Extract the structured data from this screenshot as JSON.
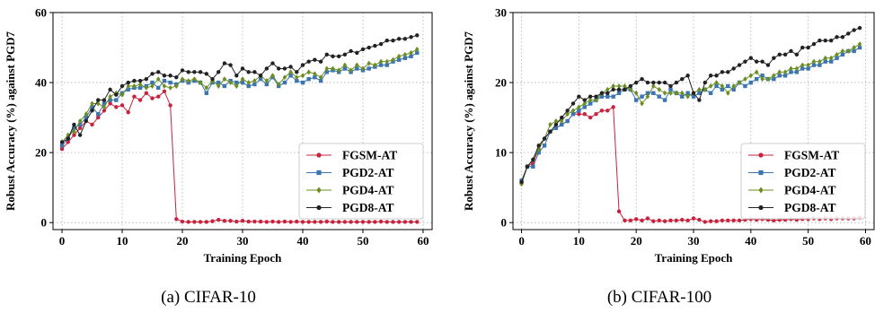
{
  "chart_data": [
    {
      "type": "line",
      "caption": "(a) CIFAR-10",
      "xlabel": "Training Epoch",
      "ylabel": "Robust Accuracy (%) against PGD7",
      "xlim": [
        -1.5,
        61.5
      ],
      "ylim": [
        -2,
        60
      ],
      "xticks": [
        0,
        10,
        20,
        30,
        40,
        50,
        60
      ],
      "yticks": [
        0,
        20,
        40,
        60
      ],
      "grid": true,
      "legend_position": "lower-right",
      "series": [
        {
          "name": "FGSM-AT",
          "color": "#c8223e",
          "marker": "circle",
          "values": [
            21,
            23,
            25,
            27,
            29,
            28,
            30,
            32,
            34,
            33,
            33.5,
            31.5,
            36,
            35,
            37,
            35.5,
            36,
            37.5,
            33.5,
            1,
            0.3,
            0.2,
            0.2,
            0.2,
            0.2,
            0.4,
            0.8,
            0.5,
            0.5,
            0.3,
            0.5,
            0.3,
            0.3,
            0.3,
            0.2,
            0.3,
            0.2,
            0.3,
            0.2,
            0.3,
            0.2,
            0.2,
            0.2,
            0.2,
            0.3,
            0.2,
            0.2,
            0.2,
            0.2,
            0.2,
            0.2,
            0.2,
            0.2,
            0.3,
            0.2,
            0.2,
            0.2,
            0.2,
            0.2,
            0.2
          ]
        },
        {
          "name": "PGD2-AT",
          "color": "#3b75af",
          "marker": "square",
          "values": [
            22,
            24,
            27,
            28,
            30,
            33,
            31,
            34,
            35,
            35,
            37,
            38,
            38.5,
            38.5,
            39,
            40,
            38.5,
            40.5,
            40,
            39.5,
            40.5,
            40,
            40.5,
            40,
            37,
            40,
            40,
            39,
            40.5,
            40,
            40,
            39,
            39.5,
            41,
            39.5,
            41.5,
            39,
            40,
            42,
            40.5,
            40,
            41,
            41.5,
            40.5,
            43,
            43.5,
            43,
            44,
            43,
            44,
            43.5,
            44,
            44.5,
            45,
            45,
            46,
            46.5,
            47,
            47.5,
            48.5
          ]
        },
        {
          "name": "PGD4-AT",
          "color": "#6b8e23",
          "marker": "diamond",
          "values": [
            23,
            25,
            26,
            29,
            31,
            34,
            34,
            33,
            36,
            37,
            36.5,
            39,
            39,
            39.5,
            38.5,
            39,
            41,
            39,
            38.5,
            39,
            41,
            40.5,
            41,
            40,
            38.5,
            40.5,
            39,
            41,
            40,
            39,
            41,
            40,
            40.5,
            42,
            40.5,
            42,
            39.5,
            41.5,
            43,
            41.5,
            42,
            43,
            42.5,
            41.5,
            44,
            44,
            43.5,
            45,
            43.5,
            45,
            44,
            45.5,
            45,
            46,
            46,
            46.5,
            47.5,
            48,
            48.5,
            49.5
          ]
        },
        {
          "name": "PGD8-AT",
          "color": "#222222",
          "marker": "circle",
          "values": [
            23,
            24,
            28,
            25,
            29,
            32,
            35,
            35,
            38,
            36.5,
            39,
            40,
            40.5,
            40.5,
            41,
            42.5,
            43,
            42,
            42,
            41.5,
            43.5,
            43,
            43,
            43,
            42.5,
            41,
            43,
            45.5,
            45,
            42,
            44,
            43,
            43,
            42,
            44,
            45.5,
            44,
            44,
            44.5,
            43,
            45,
            46,
            46.5,
            46,
            48,
            47.5,
            47.5,
            48,
            49,
            48.5,
            49.5,
            50,
            50.5,
            51,
            52,
            52,
            52.5,
            52.5,
            53,
            53.5
          ]
        }
      ]
    },
    {
      "type": "line",
      "caption": "(b) CIFAR-100",
      "xlabel": "Training Epoch",
      "ylabel": "Robust Accuracy (%) against PGD7",
      "xlim": [
        -1.5,
        61.5
      ],
      "ylim": [
        -1,
        30
      ],
      "xticks": [
        0,
        10,
        20,
        30,
        40,
        50,
        60
      ],
      "yticks": [
        0,
        10,
        20,
        30
      ],
      "grid": true,
      "legend_position": "lower-right",
      "series": [
        {
          "name": "FGSM-AT",
          "color": "#c8223e",
          "marker": "circle",
          "values": [
            5.6,
            8,
            8.5,
            10.5,
            12,
            13,
            13.5,
            14,
            14.5,
            15.5,
            15.5,
            15.5,
            15,
            15.5,
            16,
            16,
            16.5,
            1.6,
            0.3,
            0.3,
            0.5,
            0.3,
            0.6,
            0.2,
            0.3,
            0.2,
            0.3,
            0.3,
            0.4,
            0.3,
            0.6,
            0.4,
            0.1,
            0.2,
            0.2,
            0.3,
            0.3,
            0.3,
            0.3,
            0.4,
            0.5,
            0.4,
            0.5,
            0.4,
            0.3,
            0.4,
            0.4,
            0.5,
            0.4,
            0.5,
            0.5,
            0.6,
            0.5,
            0.6,
            0.5,
            0.6,
            0.6,
            0.6,
            0.6,
            0.7
          ]
        },
        {
          "name": "PGD2-AT",
          "color": "#3b75af",
          "marker": "square",
          "values": [
            6,
            8,
            8,
            10,
            11,
            13,
            13.5,
            14,
            14.5,
            15.5,
            16,
            16.5,
            17,
            17.5,
            18,
            18,
            18,
            18.5,
            19,
            19,
            17.5,
            18,
            18.5,
            18.5,
            18,
            17.5,
            19,
            18.5,
            18,
            18.5,
            18,
            18.5,
            19,
            18.5,
            19.5,
            19,
            19.5,
            19,
            20,
            19.5,
            20,
            20.5,
            21,
            20.5,
            20.5,
            21,
            21,
            21.5,
            21.5,
            22,
            22,
            22.5,
            22.5,
            23,
            23,
            23.5,
            24,
            24.5,
            24.5,
            25
          ]
        },
        {
          "name": "PGD4-AT",
          "color": "#6b8e23",
          "marker": "diamond",
          "values": [
            5.5,
            8,
            9,
            10.5,
            12,
            14,
            14.5,
            14.5,
            15.5,
            16,
            16.5,
            17,
            17.5,
            17.5,
            18.5,
            19,
            19.5,
            19.5,
            19.5,
            19,
            18.5,
            17,
            18,
            19.5,
            19,
            18.5,
            18.5,
            18.5,
            18.5,
            18,
            18.5,
            19,
            19,
            19.5,
            20,
            19.5,
            18.5,
            19.5,
            20,
            20.5,
            21,
            21.5,
            20.5,
            20.5,
            21,
            21.5,
            21.5,
            22,
            22,
            22.5,
            22.5,
            23,
            23,
            23.5,
            23.5,
            24,
            24.5,
            24.5,
            25,
            25.5
          ]
        },
        {
          "name": "PGD8-AT",
          "color": "#222222",
          "marker": "circle",
          "values": [
            5.8,
            8,
            9,
            11,
            12,
            13,
            14,
            15,
            16,
            17,
            18,
            17.5,
            18,
            18,
            18.5,
            18.5,
            19,
            19,
            19,
            19.5,
            20,
            20.5,
            20,
            20,
            20,
            20,
            19.5,
            20,
            20.5,
            21,
            18.5,
            17.5,
            20,
            21,
            21,
            21.5,
            21.5,
            22,
            22.5,
            23,
            23.5,
            23,
            23,
            22.5,
            23.5,
            24,
            24,
            24.5,
            24,
            25,
            25,
            25.5,
            26,
            26,
            26,
            26.5,
            26.5,
            27,
            27.5,
            27.8
          ]
        }
      ]
    }
  ]
}
